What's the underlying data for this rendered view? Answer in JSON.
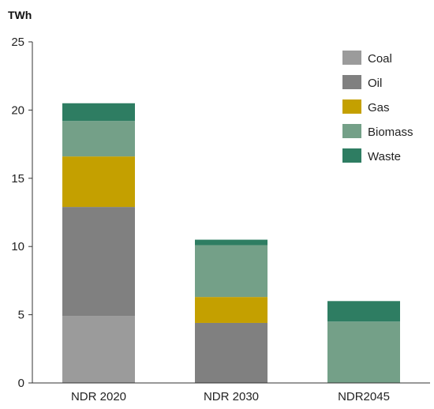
{
  "chart_data": {
    "type": "bar",
    "stacked": true,
    "unit_label": "TWh",
    "categories": [
      "NDR 2020",
      "NDR 2030",
      "NDR2045"
    ],
    "ylim": [
      0,
      25
    ],
    "yticks": [
      0,
      5,
      10,
      15,
      20,
      25
    ],
    "grid": false,
    "legend_position": "top-right",
    "series": [
      {
        "name": "Coal",
        "color": "#9b9b9b",
        "values": [
          4.9,
          0,
          0
        ]
      },
      {
        "name": "Oil",
        "color": "#808080",
        "values": [
          8.0,
          4.4,
          0
        ]
      },
      {
        "name": "Gas",
        "color": "#c4a000",
        "values": [
          3.7,
          1.9,
          0
        ]
      },
      {
        "name": "Biomass",
        "color": "#74a088",
        "values": [
          2.6,
          3.8,
          4.5
        ]
      },
      {
        "name": "Waste",
        "color": "#2e7d62",
        "values": [
          1.3,
          0.4,
          1.5
        ]
      }
    ]
  }
}
